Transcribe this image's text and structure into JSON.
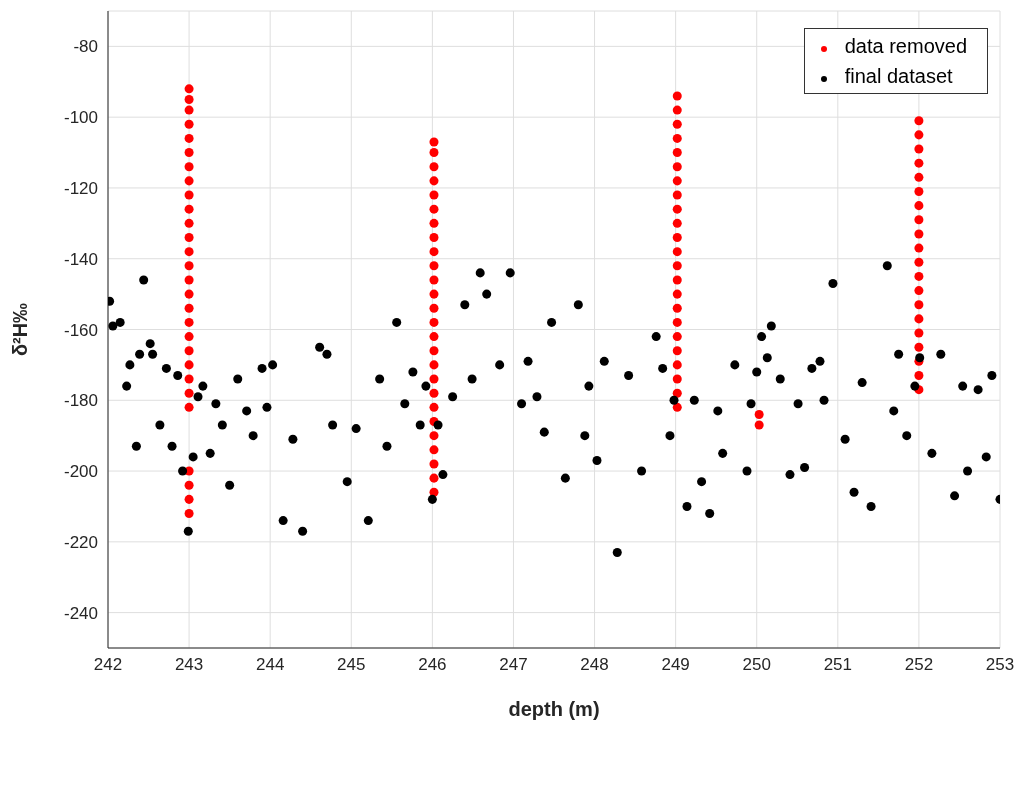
{
  "chart_data": {
    "type": "scatter",
    "xlabel": "depth (m)",
    "ylabel": "δ²H‰",
    "xlim": [
      242,
      253
    ],
    "xticks": [
      242,
      243,
      244,
      245,
      246,
      247,
      248,
      249,
      250,
      251,
      252,
      253
    ],
    "ylim": [
      -250,
      -70
    ],
    "yticks": [
      -240,
      -220,
      -200,
      -180,
      -160,
      -140,
      -120,
      -100,
      -80
    ],
    "grid": true,
    "legend": "top right",
    "marker": "circle",
    "series": [
      {
        "name": "data removed",
        "color": "#ff0000",
        "x": [
          243,
          243,
          243,
          243,
          243,
          243,
          243,
          243,
          243,
          243,
          243,
          243,
          243,
          243,
          243,
          243,
          243,
          243,
          243,
          243,
          243,
          243,
          243,
          243,
          243,
          243,
          243,
          243,
          246.02,
          246.02,
          246.02,
          246.02,
          246.02,
          246.02,
          246.02,
          246.02,
          246.02,
          246.02,
          246.02,
          246.02,
          246.02,
          246.02,
          246.02,
          246.02,
          246.02,
          246.02,
          246.02,
          246.02,
          246.02,
          246.02,
          246.02,
          246.02,
          246.02,
          246.02,
          249.02,
          249.02,
          249.02,
          249.02,
          249.02,
          249.02,
          249.02,
          249.02,
          249.02,
          249.02,
          249.02,
          249.02,
          249.02,
          249.02,
          249.02,
          249.02,
          249.02,
          249.02,
          249.02,
          249.02,
          249.02,
          249.02,
          249.02,
          250.03,
          250.03,
          252,
          252,
          252,
          252,
          252,
          252,
          252,
          252,
          252,
          252,
          252,
          252,
          252,
          252,
          252,
          252,
          252,
          252,
          252,
          252
        ],
        "values": [
          -92,
          -95,
          -98,
          -102,
          -106,
          -110,
          -114,
          -118,
          -122,
          -126,
          -130,
          -134,
          -138,
          -142,
          -146,
          -150,
          -154,
          -158,
          -162,
          -166,
          -170,
          -174,
          -178,
          -182,
          -200,
          -204,
          -208,
          -212,
          -107,
          -110,
          -114,
          -118,
          -122,
          -126,
          -130,
          -134,
          -138,
          -142,
          -146,
          -150,
          -154,
          -158,
          -162,
          -166,
          -170,
          -174,
          -178,
          -182,
          -186,
          -190,
          -194,
          -198,
          -202,
          -206,
          -94,
          -98,
          -102,
          -106,
          -110,
          -114,
          -118,
          -122,
          -126,
          -130,
          -134,
          -138,
          -142,
          -146,
          -150,
          -154,
          -158,
          -162,
          -166,
          -170,
          -174,
          -178,
          -182,
          -184,
          -187,
          -101,
          -105,
          -109,
          -113,
          -117,
          -121,
          -125,
          -129,
          -133,
          -137,
          -141,
          -145,
          -149,
          -153,
          -157,
          -161,
          -165,
          -169,
          -173,
          -177
        ]
      },
      {
        "name": "final dataset",
        "color": "#000000",
        "x": [
          242.02,
          242.06,
          242.15,
          242.23,
          242.27,
          242.35,
          242.39,
          242.44,
          242.52,
          242.55,
          242.64,
          242.72,
          242.79,
          242.86,
          242.92,
          242.99,
          243.05,
          243.11,
          243.17,
          243.26,
          243.33,
          243.41,
          243.5,
          243.6,
          243.71,
          243.79,
          243.9,
          243.96,
          244.03,
          244.16,
          244.28,
          244.4,
          244.61,
          244.7,
          244.77,
          244.95,
          245.06,
          245.21,
          245.35,
          245.44,
          245.56,
          245.66,
          245.76,
          245.85,
          245.92,
          246,
          246.07,
          246.13,
          246.25,
          246.4,
          246.49,
          246.59,
          246.67,
          246.83,
          246.96,
          247.1,
          247.18,
          247.29,
          247.38,
          247.47,
          247.64,
          247.8,
          247.88,
          247.93,
          248.03,
          248.12,
          248.28,
          248.42,
          248.58,
          248.76,
          248.84,
          248.93,
          248.98,
          249.14,
          249.23,
          249.32,
          249.42,
          249.52,
          249.58,
          249.73,
          249.88,
          249.93,
          250,
          250.06,
          250.13,
          250.18,
          250.29,
          250.41,
          250.51,
          250.59,
          250.68,
          250.78,
          250.83,
          250.94,
          251.09,
          251.2,
          251.3,
          251.41,
          251.61,
          251.69,
          251.75,
          251.85,
          251.95,
          252.01,
          252.16,
          252.27,
          252.44,
          252.54,
          252.6,
          252.73,
          252.83,
          252.9,
          253
        ],
        "values": [
          -152,
          -159,
          -158,
          -176,
          -170,
          -193,
          -167,
          -146,
          -164,
          -167,
          -187,
          -171,
          -193,
          -173,
          -200,
          -217,
          -196,
          -179,
          -176,
          -195,
          -181,
          -187,
          -204,
          -174,
          -183,
          -190,
          -171,
          -182,
          -170,
          -214,
          -191,
          -217,
          -165,
          -167,
          -187,
          -203,
          -188,
          -214,
          -174,
          -193,
          -158,
          -181,
          -172,
          -187,
          -176,
          -208,
          -187,
          -201,
          -179,
          -153,
          -174,
          -144,
          -150,
          -170,
          -144,
          -181,
          -169,
          -179,
          -189,
          -158,
          -202,
          -153,
          -190,
          -176,
          -197,
          -169,
          -223,
          -173,
          -200,
          -162,
          -171,
          -190,
          -180,
          -210,
          -180,
          -203,
          -212,
          -183,
          -195,
          -170,
          -200,
          -181,
          -172,
          -162,
          -168,
          -159,
          -174,
          -201,
          -181,
          -199,
          -171,
          -169,
          -180,
          -147,
          -191,
          -206,
          -175,
          -210,
          -142,
          -183,
          -167,
          -190,
          -176,
          -168,
          -195,
          -167,
          -207,
          -176,
          -200,
          -177,
          -196,
          -173,
          -208
        ]
      }
    ]
  }
}
